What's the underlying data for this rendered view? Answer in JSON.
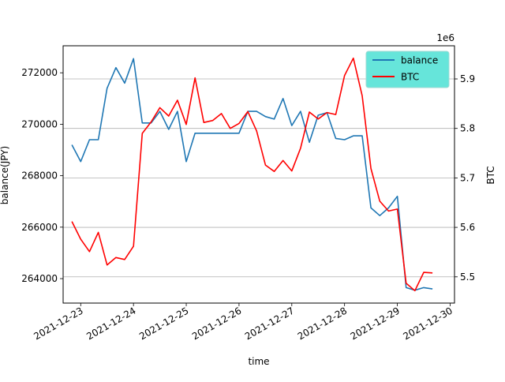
{
  "chart_data": {
    "type": "line",
    "xlabel": "time",
    "ylabel_left": "balance(JPY)",
    "ylabel_right": "BTC",
    "right_axis_offset_label": "1e6",
    "xlim": [
      "2021-12-22T16:00",
      "2021-12-30T02:00"
    ],
    "ylim_left": [
      263050,
      273050
    ],
    "ylim_right": [
      5.447,
      5.967
    ],
    "x_ticks": [
      "2021-12-23",
      "2021-12-24",
      "2021-12-25",
      "2021-12-26",
      "2021-12-27",
      "2021-12-28",
      "2021-12-29",
      "2021-12-30"
    ],
    "y_ticks_left": [
      264000,
      266000,
      268000,
      270000,
      272000
    ],
    "y_ticks_right": [
      5.5,
      5.6,
      5.7,
      5.8,
      5.9
    ],
    "y_ticks_left_labels": [
      "264000",
      "266000",
      "268000",
      "270000",
      "272000"
    ],
    "y_ticks_right_labels": [
      "5.5",
      "5.6",
      "5.7",
      "5.8",
      "5.9"
    ],
    "grid": "horizontal lines at right-axis ticks",
    "legend_placement": "top-right",
    "series": [
      {
        "name": "balance",
        "axis": "left",
        "color": "#1f77b4",
        "points": [
          [
            "2021-12-22T20:00",
            269200
          ],
          [
            "2021-12-23T00:00",
            268550
          ],
          [
            "2021-12-23T04:00",
            269400
          ],
          [
            "2021-12-23T08:00",
            269400
          ],
          [
            "2021-12-23T12:00",
            271400
          ],
          [
            "2021-12-23T16:00",
            272200
          ],
          [
            "2021-12-23T20:00",
            271600
          ],
          [
            "2021-12-24T00:00",
            272550
          ],
          [
            "2021-12-24T04:00",
            270050
          ],
          [
            "2021-12-24T08:00",
            270050
          ],
          [
            "2021-12-24T12:00",
            270500
          ],
          [
            "2021-12-24T16:00",
            269800
          ],
          [
            "2021-12-24T20:00",
            270500
          ],
          [
            "2021-12-25T00:00",
            268550
          ],
          [
            "2021-12-25T04:00",
            269650
          ],
          [
            "2021-12-25T08:00",
            269650
          ],
          [
            "2021-12-25T12:00",
            269650
          ],
          [
            "2021-12-25T16:00",
            269650
          ],
          [
            "2021-12-25T20:00",
            269650
          ],
          [
            "2021-12-26T00:00",
            269650
          ],
          [
            "2021-12-26T04:00",
            270500
          ],
          [
            "2021-12-26T08:00",
            270500
          ],
          [
            "2021-12-26T12:00",
            270300
          ],
          [
            "2021-12-26T16:00",
            270200
          ],
          [
            "2021-12-26T20:00",
            271000
          ],
          [
            "2021-12-27T00:00",
            269950
          ],
          [
            "2021-12-27T04:00",
            270500
          ],
          [
            "2021-12-27T08:00",
            269300
          ],
          [
            "2021-12-27T12:00",
            270350
          ],
          [
            "2021-12-27T16:00",
            270450
          ],
          [
            "2021-12-27T20:00",
            269450
          ],
          [
            "2021-12-28T00:00",
            269400
          ],
          [
            "2021-12-28T04:00",
            269550
          ],
          [
            "2021-12-28T08:00",
            269550
          ],
          [
            "2021-12-28T12:00",
            266750
          ],
          [
            "2021-12-28T16:00",
            266450
          ],
          [
            "2021-12-28T20:00",
            266750
          ],
          [
            "2021-12-29T00:00",
            267200
          ],
          [
            "2021-12-29T04:00",
            263650
          ],
          [
            "2021-12-29T08:00",
            263550
          ],
          [
            "2021-12-29T12:00",
            263650
          ],
          [
            "2021-12-29T16:00",
            263600
          ]
        ]
      },
      {
        "name": "BTC",
        "axis": "right",
        "color": "#ff0000",
        "points": [
          [
            "2021-12-22T20:00",
            5.612
          ],
          [
            "2021-12-23T00:00",
            5.576
          ],
          [
            "2021-12-23T04:00",
            5.551
          ],
          [
            "2021-12-23T08:00",
            5.59
          ],
          [
            "2021-12-23T12:00",
            5.524
          ],
          [
            "2021-12-23T16:00",
            5.539
          ],
          [
            "2021-12-23T20:00",
            5.535
          ],
          [
            "2021-12-24T00:00",
            5.562
          ],
          [
            "2021-12-24T04:00",
            5.79
          ],
          [
            "2021-12-24T08:00",
            5.813
          ],
          [
            "2021-12-24T12:00",
            5.842
          ],
          [
            "2021-12-24T16:00",
            5.825
          ],
          [
            "2021-12-24T20:00",
            5.857
          ],
          [
            "2021-12-25T00:00",
            5.808
          ],
          [
            "2021-12-25T04:00",
            5.902
          ],
          [
            "2021-12-25T08:00",
            5.812
          ],
          [
            "2021-12-25T12:00",
            5.816
          ],
          [
            "2021-12-25T16:00",
            5.83
          ],
          [
            "2021-12-25T20:00",
            5.8
          ],
          [
            "2021-12-26T00:00",
            5.81
          ],
          [
            "2021-12-26T04:00",
            5.834
          ],
          [
            "2021-12-26T08:00",
            5.795
          ],
          [
            "2021-12-26T12:00",
            5.726
          ],
          [
            "2021-12-26T16:00",
            5.713
          ],
          [
            "2021-12-26T20:00",
            5.735
          ],
          [
            "2021-12-27T00:00",
            5.714
          ],
          [
            "2021-12-27T04:00",
            5.76
          ],
          [
            "2021-12-27T08:00",
            5.833
          ],
          [
            "2021-12-27T12:00",
            5.819
          ],
          [
            "2021-12-27T16:00",
            5.832
          ],
          [
            "2021-12-27T20:00",
            5.828
          ],
          [
            "2021-12-28T00:00",
            5.907
          ],
          [
            "2021-12-28T04:00",
            5.942
          ],
          [
            "2021-12-28T08:00",
            5.866
          ],
          [
            "2021-12-28T12:00",
            5.719
          ],
          [
            "2021-12-28T16:00",
            5.653
          ],
          [
            "2021-12-28T20:00",
            5.633
          ],
          [
            "2021-12-29T00:00",
            5.637
          ],
          [
            "2021-12-29T04:00",
            5.487
          ],
          [
            "2021-12-29T08:00",
            5.472
          ],
          [
            "2021-12-29T12:00",
            5.509
          ],
          [
            "2021-12-29T16:00",
            5.508
          ]
        ]
      }
    ]
  },
  "legend": {
    "items": [
      {
        "label": "balance",
        "color": "#1f77b4"
      },
      {
        "label": "BTC",
        "color": "#ff0000"
      }
    ],
    "background": "#66e5da"
  }
}
